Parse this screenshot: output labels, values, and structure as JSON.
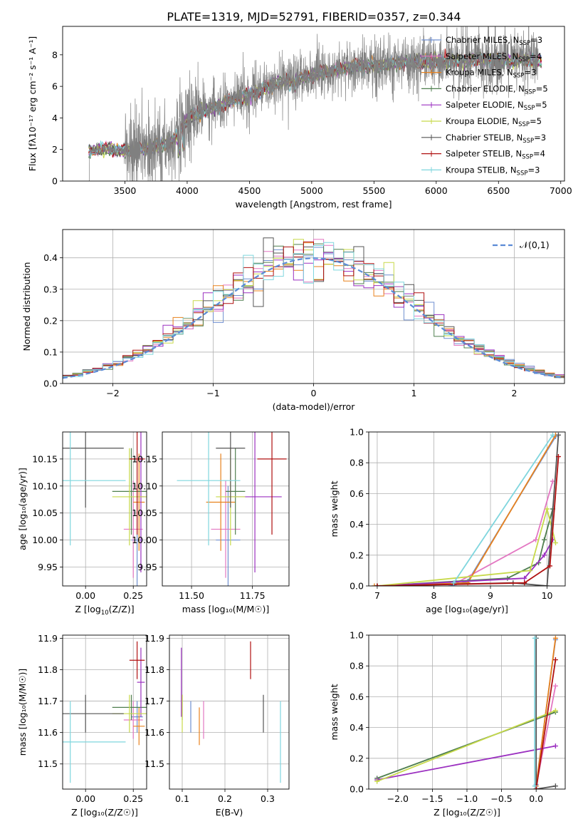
{
  "title": "PLATE=1319, MJD=52791, FIBERID=0357, z=0.344",
  "colors": {
    "Chabrier MILES": "#6f8fd0",
    "Salpeter MILES": "#e377c2",
    "Kroupa MILES": "#e8821e",
    "Chabrier ELODIE": "#4f7f4f",
    "Salpeter ELODIE": "#9b30c0",
    "Kroupa ELODIE": "#c7d94a",
    "Chabrier STELIB": "#555555",
    "Salpeter STELIB": "#b01010",
    "Kroupa STELIB": "#7fd6de",
    "normal": "#5b8bd6",
    "spectrum": "#808080"
  },
  "chart_data": [
    {
      "type": "line",
      "xlabel": "wavelength [Angstrom, rest frame]",
      "ylabel": "Flux [fλ10⁻¹⁷ erg cm⁻² s⁻¹ A⁻¹]",
      "xlim": [
        3000,
        7030
      ],
      "ylim": [
        0,
        9.8
      ],
      "xticks": [
        "3500",
        "4000",
        "4500",
        "5000",
        "5500",
        "6000",
        "6500",
        "7000"
      ],
      "yticks": [
        "0",
        "2",
        "4",
        "6",
        "8"
      ],
      "grid": false,
      "legend_position": "top-right",
      "legend": [
        {
          "name": "Chabrier MILES",
          "base": "Chabrier MILES, N",
          "sub": "SSP",
          "tail": "=3"
        },
        {
          "name": "Salpeter MILES",
          "base": "Salpeter MILES, N",
          "sub": "SSP",
          "tail": "=4"
        },
        {
          "name": "Kroupa MILES",
          "base": "Kroupa MILES, N",
          "sub": "SSP",
          "tail": "=3"
        },
        {
          "name": "Chabrier ELODIE",
          "base": "Chabrier ELODIE, N",
          "sub": "SSP",
          "tail": "=5"
        },
        {
          "name": "Salpeter ELODIE",
          "base": "Salpeter ELODIE, N",
          "sub": "SSP",
          "tail": "=5"
        },
        {
          "name": "Kroupa ELODIE",
          "base": "Kroupa ELODIE, N",
          "sub": "SSP",
          "tail": "=5"
        },
        {
          "name": "Chabrier STELIB",
          "base": "Chabrier STELIB, N",
          "sub": "SSP",
          "tail": "=3"
        },
        {
          "name": "Salpeter STELIB",
          "base": "Salpeter STELIB, N",
          "sub": "SSP",
          "tail": "=4"
        },
        {
          "name": "Kroupa STELIB",
          "base": "Kroupa STELIB, N",
          "sub": "SSP",
          "tail": "=3"
        }
      ],
      "continuum": {
        "wavelength": [
          3200,
          3300,
          3400,
          3500,
          3600,
          3700,
          3800,
          3900,
          4000,
          4100,
          4200,
          4300,
          4400,
          4500,
          4600,
          4700,
          4800,
          4900,
          5000,
          5100,
          5200,
          5300,
          5400,
          5500,
          5600,
          5700,
          5800,
          5900,
          6000,
          6100,
          6200,
          6300,
          6400,
          6500,
          6600,
          6700,
          6800
        ],
        "flux": [
          1.9,
          2.0,
          2.0,
          1.9,
          2.0,
          2.1,
          2.3,
          2.6,
          3.9,
          4.4,
          4.6,
          4.9,
          5.2,
          5.5,
          5.8,
          6.1,
          6.3,
          6.5,
          6.7,
          6.9,
          7.0,
          7.2,
          7.3,
          7.3,
          7.4,
          7.5,
          7.5,
          7.6,
          7.6,
          7.6,
          7.6,
          7.7,
          7.7,
          7.7,
          7.6,
          7.7,
          7.6
        ]
      }
    },
    {
      "type": "line",
      "xlabel": "(data-model)/error",
      "ylabel": "Normed distribution",
      "xlim": [
        -2.5,
        2.5
      ],
      "ylim": [
        0,
        0.49
      ],
      "xticks": [
        "−2",
        "−1",
        "0",
        "1",
        "2"
      ],
      "yticks": [
        "0.0",
        "0.1",
        "0.2",
        "0.3",
        "0.4"
      ],
      "grid": true,
      "legend_position": "top-right",
      "normal_label": "𝒩(0,1)",
      "bin_edges_range": [
        -2.5,
        2.5
      ],
      "bin_width": 0.1
    },
    {
      "type": "scatter",
      "xlabel_base": "Z [log",
      "xlabel_sub": "10",
      "xlabel_tail": "(Z/Z",
      "xlabel_end": ")]",
      "ylabel": "age  [log₁₀(age/yr)]",
      "xlim": [
        -0.12,
        0.32
      ],
      "ylim": [
        9.915,
        10.2
      ],
      "xticks": [
        "0.00",
        "0.25"
      ],
      "yticks": [
        "9.95",
        "10.00",
        "10.05",
        "10.10",
        "10.15"
      ],
      "grid": true
    },
    {
      "type": "scatter",
      "xlabel": "mass [log₁₀(M/M☉)]",
      "ylabel": "",
      "xlim": [
        11.38,
        11.9
      ],
      "ylim": [
        9.915,
        10.2
      ],
      "xticks": [
        "11.50",
        "11.75"
      ],
      "yticks": [
        "9.95",
        "10.00",
        "10.05",
        "10.10",
        "10.15"
      ],
      "grid": true
    },
    {
      "type": "line",
      "xlabel": "age  [log₁₀(age/yr)]",
      "ylabel": "mass weight",
      "xlim": [
        6.85,
        10.32
      ],
      "ylim": [
        0,
        1.0
      ],
      "xticks": [
        "7",
        "8",
        "9",
        "10"
      ],
      "yticks": [
        "0.0",
        "0.2",
        "0.4",
        "0.6",
        "0.8",
        "1.0"
      ],
      "grid": true
    },
    {
      "type": "scatter",
      "xlabel": "Z [log₁₀(Z/Z☉)]",
      "ylabel": "mass [log₁₀(M/M☉)]",
      "xlim": [
        -0.12,
        0.32
      ],
      "ylim": [
        11.42,
        11.91
      ],
      "xticks": [
        "0.00",
        "0.25"
      ],
      "yticks": [
        "11.5",
        "11.6",
        "11.7",
        "11.8",
        "11.9"
      ],
      "grid": true
    },
    {
      "type": "scatter",
      "xlabel": "E(B-V)",
      "ylabel": "",
      "xlim": [
        0.07,
        0.35
      ],
      "ylim": [
        11.42,
        11.91
      ],
      "xticks": [
        "0.1",
        "0.2",
        "0.3"
      ],
      "yticks": [
        "11.5",
        "11.6",
        "11.7",
        "11.8",
        "11.9"
      ],
      "grid": true
    },
    {
      "type": "line",
      "xlabel": "Z [log₁₀(Z/Z☉)]",
      "ylabel": "mass weight",
      "xlim": [
        -2.42,
        0.42
      ],
      "ylim": [
        0,
        1.0
      ],
      "xticks": [
        "−2.0",
        "−1.5",
        "−1.0",
        "−0.5",
        "0.0"
      ],
      "yticks": [
        "0.0",
        "0.2",
        "0.4",
        "0.6",
        "0.8",
        "1.0"
      ],
      "grid": true
    }
  ],
  "fits": [
    {
      "model": "Chabrier MILES",
      "Z": 0.27,
      "Z_err": 0.03,
      "age": 10.0,
      "age_err": 0.1,
      "mass": 11.65,
      "mass_err": 0.05,
      "ebv": 0.12,
      "ebv_err": 0.02
    },
    {
      "model": "Salpeter MILES",
      "Z": 0.25,
      "Z_err": 0.05,
      "age": 10.02,
      "age_err": 0.09,
      "mass": 11.64,
      "mass_err": 0.06,
      "ebv": 0.15,
      "ebv_err": 0.1
    },
    {
      "model": "Kroupa MILES",
      "Z": 0.28,
      "Z_err": 0.03,
      "age": 10.07,
      "age_err": 0.09,
      "mass": 11.62,
      "mass_err": 0.06,
      "ebv": 0.14,
      "ebv_err": 0.11
    },
    {
      "model": "Chabrier ELODIE",
      "Z": 0.24,
      "Z_err": 0.1,
      "age": 10.09,
      "age_err": 0.08,
      "mass": 11.68,
      "mass_err": 0.04,
      "ebv": 0.1,
      "ebv_err": 0.04
    },
    {
      "model": "Salpeter ELODIE",
      "Z": 0.29,
      "Z_err": 0.02,
      "age": 10.08,
      "age_err": 0.14,
      "mass": 11.76,
      "mass_err": 0.11,
      "ebv": 0.098,
      "ebv_err": 0.11
    },
    {
      "model": "Kroupa ELODIE",
      "Z": 0.23,
      "Z_err": 0.09,
      "age": 10.08,
      "age_err": 0.09,
      "mass": 11.66,
      "mass_err": 0.06,
      "ebv": 0.1,
      "ebv_err": 0.04
    },
    {
      "model": "Chabrier STELIB",
      "Z": 0.0,
      "Z_err": 0.2,
      "age": 10.17,
      "age_err": 0.11,
      "mass": 11.66,
      "mass_err": 0.06,
      "ebv": 0.29,
      "ebv_err": 0.09
    },
    {
      "model": "Salpeter STELIB",
      "Z": 0.27,
      "Z_err": 0.04,
      "age": 10.15,
      "age_err": 0.14,
      "mass": 11.83,
      "mass_err": 0.06,
      "ebv": 0.26,
      "ebv_err": 0.09
    },
    {
      "model": "Kroupa STELIB",
      "Z": -0.08,
      "Z_err": 0.29,
      "age": 10.11,
      "age_err": 0.12,
      "mass": 11.57,
      "mass_err": 0.13,
      "ebv": 0.33,
      "ebv_err": 0.1
    }
  ],
  "weights_vs_age": [
    {
      "model": "Chabrier MILES",
      "age": [
        8.3,
        8.6,
        10.15
      ],
      "w": [
        0.0,
        0.03,
        0.97
      ]
    },
    {
      "model": "Salpeter MILES",
      "age": [
        8.4,
        9.8,
        10.1
      ],
      "w": [
        0.02,
        0.3,
        0.68
      ]
    },
    {
      "model": "Kroupa MILES",
      "age": [
        6.95,
        8.6,
        10.15
      ],
      "w": [
        0.0,
        0.02,
        0.98
      ]
    },
    {
      "model": "Chabrier ELODIE",
      "age": [
        7.0,
        9.3,
        9.85,
        9.95,
        10.1
      ],
      "w": [
        0.0,
        0.05,
        0.15,
        0.3,
        0.5
      ]
    },
    {
      "model": "Salpeter ELODIE",
      "age": [
        7.0,
        9.6,
        9.95,
        10.1
      ],
      "w": [
        0.0,
        0.05,
        0.2,
        0.3
      ]
    },
    {
      "model": "Kroupa ELODIE",
      "age": [
        7.0,
        9.7,
        10.0,
        10.15
      ],
      "w": [
        0.0,
        0.1,
        0.5,
        0.28
      ]
    },
    {
      "model": "Chabrier STELIB",
      "age": [
        7.0,
        9.4,
        10.0,
        10.2
      ],
      "w": [
        0.0,
        0.02,
        0.0,
        0.98
      ]
    },
    {
      "model": "Salpeter STELIB",
      "age": [
        7.0,
        9.6,
        10.05,
        10.2
      ],
      "w": [
        0.0,
        0.02,
        0.13,
        0.84
      ]
    },
    {
      "model": "Kroupa STELIB",
      "age": [
        8.35,
        10.1
      ],
      "w": [
        0.02,
        0.98
      ]
    }
  ],
  "weights_vs_Z": [
    {
      "model": "Chabrier MILES",
      "Z": [
        0.0,
        0.28
      ],
      "w": [
        0.03,
        0.97
      ]
    },
    {
      "model": "Salpeter MILES",
      "Z": [
        0.0,
        0.28
      ],
      "w": [
        0.02,
        0.67
      ]
    },
    {
      "model": "Kroupa MILES",
      "Z": [
        0.0,
        0.28
      ],
      "w": [
        0.02,
        0.98
      ]
    },
    {
      "model": "Chabrier ELODIE",
      "Z": [
        -2.3,
        0.28
      ],
      "w": [
        0.07,
        0.5
      ]
    },
    {
      "model": "Salpeter ELODIE",
      "Z": [
        -2.3,
        0.28
      ],
      "w": [
        0.06,
        0.28
      ]
    },
    {
      "model": "Kroupa ELODIE",
      "Z": [
        -2.3,
        0.28
      ],
      "w": [
        0.05,
        0.51
      ]
    },
    {
      "model": "Chabrier STELIB",
      "Z": [
        0.0,
        0.0,
        0.28
      ],
      "w": [
        0.98,
        0.0,
        0.02
      ]
    },
    {
      "model": "Salpeter STELIB",
      "Z": [
        0.0,
        0.28
      ],
      "w": [
        0.0,
        0.84
      ]
    },
    {
      "model": "Kroupa STELIB",
      "Z": [
        -0.02,
        -0.02
      ],
      "w": [
        0.02,
        0.98
      ]
    }
  ]
}
